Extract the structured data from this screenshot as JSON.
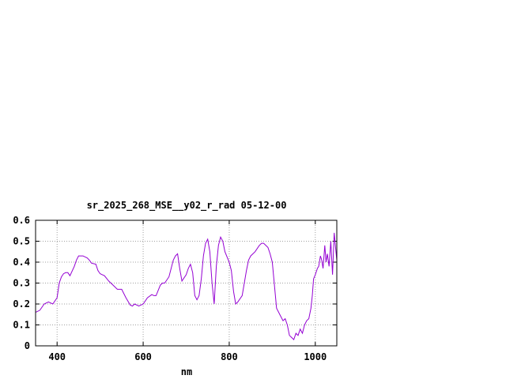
{
  "chart_data": {
    "type": "line",
    "title": "sr_2025_268_MSE__y02_r_rad 05-12-00",
    "xlabel": "nm",
    "ylabel": "",
    "xlim": [
      350,
      1050
    ],
    "ylim": [
      0,
      0.6
    ],
    "x_ticks": [
      400,
      600,
      800,
      1000
    ],
    "x_tick_labels": [
      "400",
      "600",
      "800",
      "1000"
    ],
    "y_ticks": [
      0,
      0.1,
      0.2,
      0.3,
      0.4,
      0.5,
      0.6
    ],
    "y_tick_labels": [
      "0",
      "0.1",
      "0.2",
      "0.3",
      "0.4",
      "0.5",
      "0.6"
    ],
    "grid": true,
    "line_color": "#9400d3",
    "series": [
      {
        "x": [
          350,
          360,
          370,
          380,
          390,
          400,
          405,
          410,
          415,
          420,
          425,
          430,
          440,
          445,
          450,
          460,
          470,
          475,
          480,
          490,
          495,
          500,
          505,
          510,
          520,
          530,
          540,
          550,
          560,
          570,
          575,
          580,
          590,
          600,
          610,
          620,
          625,
          630,
          640,
          645,
          650,
          660,
          670,
          675,
          680,
          685,
          690,
          700,
          705,
          710,
          715,
          720,
          725,
          730,
          735,
          740,
          745,
          750,
          755,
          760,
          765,
          770,
          775,
          780,
          785,
          790,
          800,
          805,
          810,
          815,
          820,
          830,
          840,
          845,
          850,
          860,
          870,
          875,
          880,
          890,
          895,
          900,
          910,
          920,
          925,
          930,
          935,
          940,
          945,
          950,
          955,
          960,
          965,
          970,
          975,
          980,
          985,
          990,
          993,
          996,
          1000,
          1005,
          1008,
          1012,
          1015,
          1018,
          1022,
          1025,
          1028,
          1032,
          1036,
          1040,
          1044,
          1047,
          1050
        ],
        "y": [
          0.16,
          0.17,
          0.2,
          0.21,
          0.2,
          0.23,
          0.3,
          0.33,
          0.345,
          0.35,
          0.35,
          0.335,
          0.38,
          0.41,
          0.43,
          0.43,
          0.42,
          0.41,
          0.395,
          0.39,
          0.36,
          0.345,
          0.34,
          0.335,
          0.31,
          0.29,
          0.27,
          0.27,
          0.23,
          0.195,
          0.19,
          0.2,
          0.19,
          0.2,
          0.23,
          0.245,
          0.24,
          0.24,
          0.29,
          0.3,
          0.3,
          0.33,
          0.41,
          0.43,
          0.44,
          0.37,
          0.31,
          0.34,
          0.37,
          0.39,
          0.35,
          0.24,
          0.22,
          0.24,
          0.32,
          0.43,
          0.49,
          0.51,
          0.45,
          0.3,
          0.2,
          0.38,
          0.48,
          0.52,
          0.5,
          0.45,
          0.4,
          0.36,
          0.26,
          0.2,
          0.21,
          0.24,
          0.36,
          0.41,
          0.43,
          0.45,
          0.48,
          0.49,
          0.49,
          0.47,
          0.44,
          0.4,
          0.18,
          0.14,
          0.12,
          0.13,
          0.1,
          0.05,
          0.04,
          0.03,
          0.06,
          0.05,
          0.08,
          0.06,
          0.1,
          0.12,
          0.13,
          0.18,
          0.24,
          0.32,
          0.34,
          0.37,
          0.38,
          0.43,
          0.41,
          0.37,
          0.48,
          0.4,
          0.44,
          0.38,
          0.5,
          0.34,
          0.54,
          0.47,
          0.41
        ]
      }
    ]
  }
}
